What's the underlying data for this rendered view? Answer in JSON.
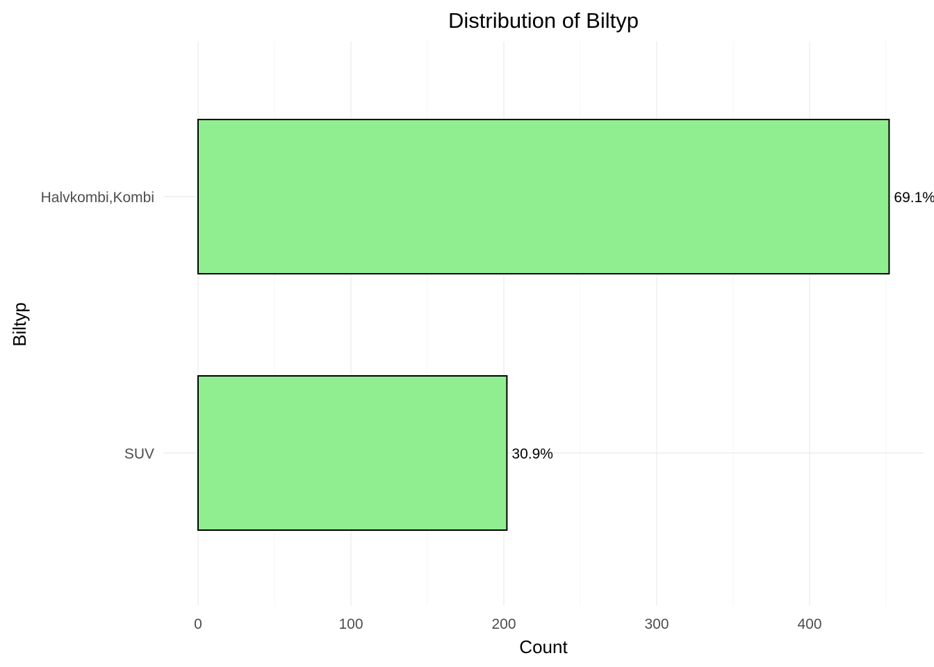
{
  "chart_data": {
    "type": "bar",
    "orientation": "horizontal",
    "title": "Distribution of  Biltyp",
    "xlabel": "Count",
    "ylabel": "Biltyp",
    "categories": [
      "Halvkombi,Kombi",
      "SUV"
    ],
    "values": [
      452,
      202
    ],
    "data_labels": [
      "69.1%",
      "30.9%"
    ],
    "x_ticks": [
      0,
      100,
      200,
      300,
      400
    ],
    "xlim": [
      0,
      452
    ],
    "grid": true,
    "legend": "none",
    "colors": {
      "bar_fill": "#90EE90",
      "bar_stroke": "#000000"
    }
  }
}
